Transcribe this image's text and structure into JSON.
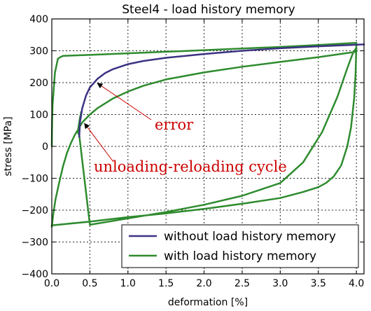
{
  "chart_data": {
    "type": "line",
    "title": "Steel4 - load history memory",
    "xlabel": "deformation [%]",
    "ylabel": "stress [MPa]",
    "xlim": [
      0.0,
      4.1
    ],
    "ylim": [
      -400,
      400
    ],
    "xticks": [
      "0.0",
      "0.5",
      "1.0",
      "1.5",
      "2.0",
      "2.5",
      "3.0",
      "3.5",
      "4.0"
    ],
    "yticks": [
      "−400",
      "−300",
      "−200",
      "−100",
      "0",
      "100",
      "200",
      "300",
      "400"
    ],
    "grid": true,
    "legend_position": "lower-right",
    "series": [
      {
        "name": "without load history memory",
        "color": "#3b3383",
        "x": [
          0.36,
          0.37,
          0.4,
          0.45,
          0.5,
          0.6,
          0.7,
          0.8,
          1.0,
          1.2,
          1.5,
          2.0,
          2.5,
          3.0,
          3.5,
          4.1
        ],
        "y": [
          30,
          75,
          120,
          160,
          185,
          212,
          230,
          242,
          258,
          268,
          278,
          290,
          300,
          308,
          314,
          320
        ]
      },
      {
        "name": "with load history memory",
        "color": "#2e8b2e",
        "x": [
          0.0,
          0.002,
          0.005,
          0.01,
          0.04,
          0.08,
          0.11,
          0.13,
          0.15,
          0.5,
          1.0,
          1.5,
          2.0,
          2.5,
          3.0,
          3.5,
          4.0,
          4.0,
          3.99,
          3.97,
          3.93,
          3.88,
          3.8,
          3.7,
          3.6,
          3.5,
          3.3,
          3.0,
          2.5,
          2.0,
          1.5,
          1.0,
          0.5,
          0.0,
          0.0,
          0.02,
          0.05,
          0.1,
          0.15,
          0.2,
          0.25,
          0.3,
          0.35,
          0.4,
          0.5,
          0.6,
          0.8,
          1.0,
          1.2,
          1.5,
          2.0,
          2.5,
          3.0,
          3.5,
          4.0,
          4.0,
          3.95,
          3.88,
          3.75,
          3.55,
          3.3,
          3.0,
          2.5,
          2.0,
          1.5,
          1.0,
          0.5,
          0.36,
          0.34,
          0.35,
          0.36,
          0.37,
          0.38,
          0.385
        ],
        "y": [
          0,
          40,
          80,
          130,
          230,
          275,
          280,
          282,
          284,
          287,
          292,
          297,
          302,
          307,
          312,
          318,
          325,
          320,
          230,
          150,
          60,
          0,
          -60,
          -95,
          -115,
          -128,
          -143,
          -162,
          -180,
          -196,
          -210,
          -222,
          -236,
          -248,
          -252,
          -210,
          -165,
          -110,
          -60,
          -20,
          10,
          35,
          55,
          75,
          100,
          120,
          150,
          172,
          190,
          210,
          232,
          250,
          265,
          280,
          297,
          310,
          290,
          245,
          155,
          45,
          -50,
          -115,
          -155,
          -183,
          -206,
          -226,
          -246,
          35,
          45,
          60,
          75,
          90,
          100,
          108
        ]
      }
    ],
    "annotations": [
      {
        "text": "error",
        "x": 0.6,
        "y": 198
      },
      {
        "text": "unloading-reloading cycle",
        "x": 0.43,
        "y": 72
      }
    ]
  }
}
